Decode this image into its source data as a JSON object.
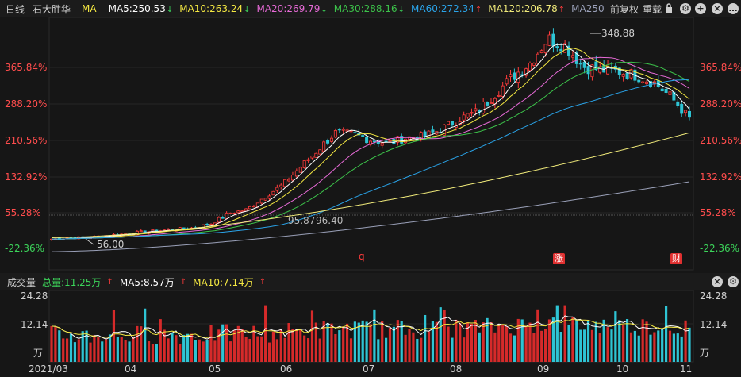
{
  "header": {
    "period": "日线",
    "stock_name": "石大胜华",
    "indicator": "MA",
    "ma": [
      {
        "label": "MA5:250.53",
        "dir": "down",
        "color": "#ffffff"
      },
      {
        "label": "MA10:263.24",
        "dir": "down",
        "color": "#f4e842"
      },
      {
        "label": "MA20:269.79",
        "dir": "down",
        "color": "#e66ad6"
      },
      {
        "label": "MA30:288.16",
        "dir": "down",
        "color": "#3cc24a"
      },
      {
        "label": "MA60:272.34",
        "dir": "up",
        "color": "#2aa3e8"
      },
      {
        "label": "MA120:206.78",
        "dir": "up",
        "color": "#f0ea7a"
      },
      {
        "label": "MA250",
        "dir": "",
        "color": "#9aa0b8"
      }
    ],
    "adjust": "前复权",
    "overlay": "重载",
    "icons": [
      "lock-icon",
      "settings-icon",
      "add-icon",
      "close-icon"
    ]
  },
  "price_axis": {
    "labels": [
      "365.84%",
      "288.20%",
      "210.56%",
      "132.92%",
      "55.28%",
      "-22.36%"
    ]
  },
  "annotations": {
    "high": "348.88",
    "low": "56.00",
    "gap_low": "95.87",
    "gap_high": "96.40",
    "markers": [
      "q",
      "涨",
      "财"
    ]
  },
  "volume": {
    "title": "成交量",
    "total": "总量:11.25万",
    "ma5": "MA5:8.57万",
    "ma10": "MA10:7.14万",
    "axis": [
      "24.28",
      "12.14",
      "万"
    ]
  },
  "x_axis": [
    "2021/03",
    "04",
    "05",
    "06",
    "07",
    "08",
    "09",
    "10",
    "11"
  ],
  "chart_data": {
    "type": "candlestick",
    "price_high": 348.88,
    "price_low": 56.0,
    "y_axis_labels": [
      "365.84%",
      "288.20%",
      "210.56%",
      "132.92%",
      "55.28%",
      "-22.36%"
    ],
    "x_labels": [
      "2021/03",
      "04",
      "05",
      "06",
      "07",
      "08",
      "09",
      "10",
      "11"
    ],
    "close_trend": [
      58,
      60,
      60,
      63,
      65,
      68,
      70,
      72,
      74,
      80,
      95,
      100,
      118,
      135,
      160,
      185,
      210,
      208,
      200,
      195,
      203,
      205,
      215,
      230,
      240,
      265,
      290,
      310,
      345,
      335,
      305,
      300,
      298,
      292,
      282,
      260,
      230
    ]
  }
}
